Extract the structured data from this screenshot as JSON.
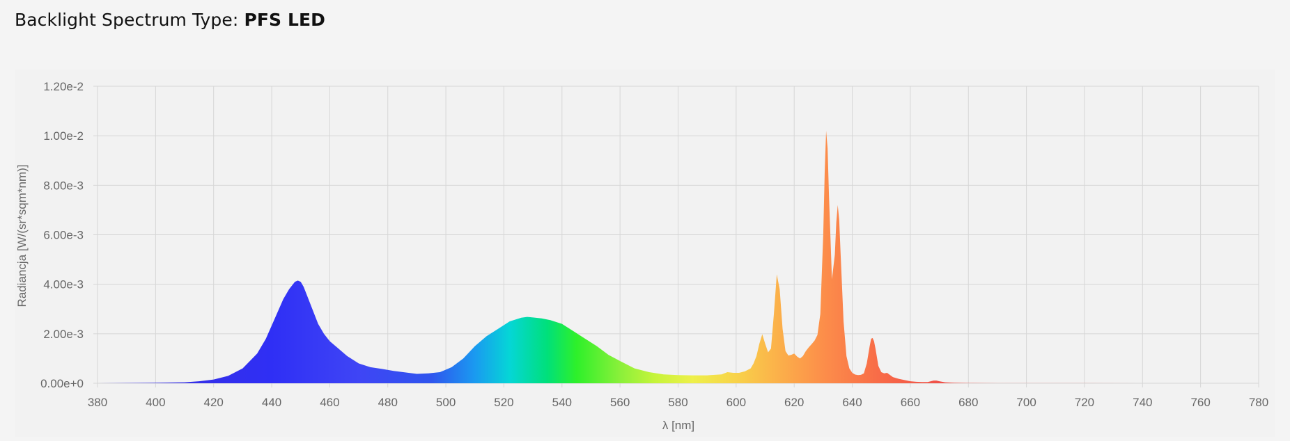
{
  "header": {
    "title_prefix": "Backlight Spectrum Type: ",
    "title_value": "PFS LED"
  },
  "chart_data": {
    "type": "area",
    "xlabel": "λ [nm]",
    "ylabel": "Radiancja [W/(sr*sqm*nm)]",
    "xlim": [
      380,
      780
    ],
    "ylim": [
      0,
      0.012
    ],
    "x_ticks": [
      380,
      400,
      420,
      440,
      460,
      480,
      500,
      520,
      540,
      560,
      580,
      600,
      620,
      640,
      660,
      680,
      700,
      720,
      740,
      760,
      780
    ],
    "y_ticks": [
      0,
      0.002,
      0.004,
      0.006,
      0.008,
      0.01,
      0.012
    ],
    "x_tick_labels": [
      "380",
      "400",
      "420",
      "440",
      "460",
      "480",
      "500",
      "520",
      "540",
      "560",
      "580",
      "600",
      "620",
      "640",
      "660",
      "680",
      "700",
      "720",
      "740",
      "760",
      "780"
    ],
    "y_tick_labels": [
      "0.00e+0",
      "2.00e-3",
      "4.00e-3",
      "6.00e-3",
      "8.00e-3",
      "1.00e-2",
      "1.20e-2"
    ],
    "grid": true,
    "fill": "wavelength-colored spectrum",
    "gradient_colors": [
      {
        "nm": 380,
        "color": "#3a2fd8"
      },
      {
        "nm": 440,
        "color": "#2f2ff5"
      },
      {
        "nm": 470,
        "color": "#3f45f5"
      },
      {
        "nm": 495,
        "color": "#2f55ee"
      },
      {
        "nm": 510,
        "color": "#1a9af0"
      },
      {
        "nm": 522,
        "color": "#05d6d6"
      },
      {
        "nm": 535,
        "color": "#00e07a"
      },
      {
        "nm": 545,
        "color": "#2ef02a"
      },
      {
        "nm": 560,
        "color": "#8af03a"
      },
      {
        "nm": 572,
        "color": "#c6f43a"
      },
      {
        "nm": 585,
        "color": "#eef04a"
      },
      {
        "nm": 600,
        "color": "#f8d24a"
      },
      {
        "nm": 612,
        "color": "#fbb64a"
      },
      {
        "nm": 630,
        "color": "#fc8e4a"
      },
      {
        "nm": 650,
        "color": "#f86a48"
      },
      {
        "nm": 670,
        "color": "#f05048"
      },
      {
        "nm": 780,
        "color": "#e43e3e"
      }
    ],
    "series": [
      {
        "x": [
          380,
          390,
          400,
          410,
          415,
          420,
          425,
          430,
          435,
          438,
          441,
          444,
          446,
          448,
          449,
          450,
          451,
          452,
          454,
          456,
          458,
          460,
          463,
          466,
          470,
          474,
          478,
          482,
          486,
          490,
          494,
          498,
          502,
          506,
          510,
          514,
          518,
          522,
          526,
          528,
          530,
          533,
          536,
          540,
          544,
          548,
          552,
          556,
          560,
          565,
          570,
          575,
          580,
          585,
          590,
          595,
          597,
          599,
          601,
          603,
          605,
          606,
          607,
          608,
          609,
          610,
          611,
          612,
          613,
          614,
          615,
          616,
          617,
          618,
          619,
          620,
          621,
          622,
          623,
          624,
          625,
          626,
          627,
          628,
          629,
          630,
          630.5,
          631,
          631.5,
          632,
          633,
          634,
          634.5,
          635,
          635.5,
          636,
          637,
          638,
          639,
          640,
          641,
          642,
          643,
          644,
          645,
          646,
          646.5,
          647,
          647.5,
          648,
          649,
          650,
          651,
          652,
          654,
          656,
          658,
          660,
          662,
          664,
          666,
          668,
          669,
          670,
          672,
          675,
          680,
          690,
          700,
          720,
          740,
          760,
          780
        ],
        "y": [
          0.0,
          1e-05,
          2e-05,
          4e-05,
          8e-05,
          0.00015,
          0.0003,
          0.0006,
          0.0012,
          0.0018,
          0.0026,
          0.0034,
          0.0038,
          0.0041,
          0.00415,
          0.0041,
          0.0039,
          0.0036,
          0.003,
          0.0024,
          0.002,
          0.0017,
          0.0014,
          0.0011,
          0.0008,
          0.00065,
          0.00058,
          0.0005,
          0.00044,
          0.00038,
          0.0004,
          0.00045,
          0.00065,
          0.001,
          0.0015,
          0.0019,
          0.0022,
          0.0025,
          0.00265,
          0.00268,
          0.00266,
          0.00262,
          0.00255,
          0.0024,
          0.0021,
          0.0018,
          0.0015,
          0.00115,
          0.0009,
          0.0006,
          0.00045,
          0.00036,
          0.00033,
          0.00032,
          0.00032,
          0.00036,
          0.00045,
          0.00042,
          0.00042,
          0.00048,
          0.0006,
          0.0008,
          0.0011,
          0.0016,
          0.00198,
          0.0016,
          0.00125,
          0.0014,
          0.0028,
          0.0044,
          0.0038,
          0.0022,
          0.0013,
          0.00112,
          0.00115,
          0.0012,
          0.00108,
          0.001,
          0.0011,
          0.0013,
          0.00145,
          0.00158,
          0.00172,
          0.00195,
          0.0028,
          0.006,
          0.0085,
          0.0102,
          0.0095,
          0.0075,
          0.0042,
          0.0052,
          0.0065,
          0.0072,
          0.0066,
          0.0052,
          0.0025,
          0.0011,
          0.0006,
          0.00042,
          0.00035,
          0.00033,
          0.00034,
          0.0004,
          0.0008,
          0.0015,
          0.0018,
          0.00183,
          0.0017,
          0.0014,
          0.0007,
          0.00045,
          0.0004,
          0.00042,
          0.00025,
          0.00018,
          0.00013,
          8e-05,
          6e-05,
          5e-05,
          5e-05,
          0.00011,
          0.00011,
          8e-05,
          4e-05,
          2e-05,
          1e-05,
          5e-06,
          3e-06,
          2e-06,
          1e-06,
          1e-06,
          0.0
        ]
      }
    ]
  }
}
